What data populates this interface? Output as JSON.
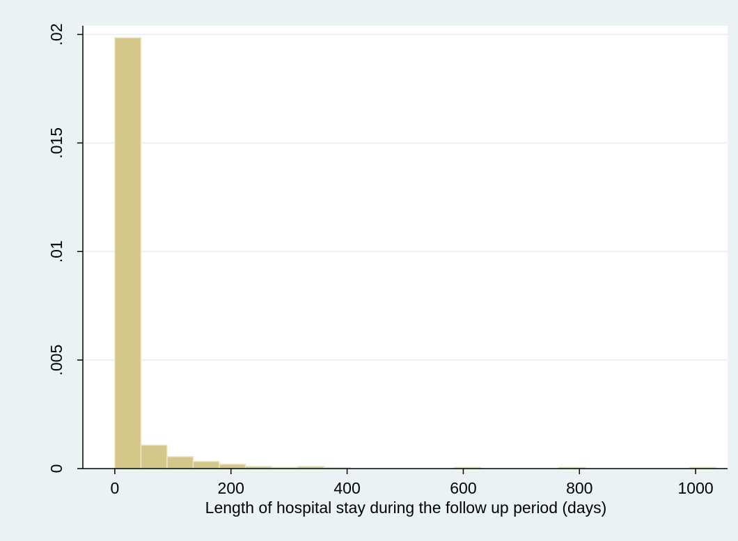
{
  "colors": {
    "background": "#eaf2f3",
    "plot_area": "#ffffff",
    "grid": "#eaf2f3",
    "bar_fill": "#d3c88a",
    "bar_stroke": "#ece6c4",
    "axis": "#000000"
  },
  "chart_data": {
    "type": "bar",
    "title": "",
    "xlabel": "Length of hospital stay during the follow up period (days)",
    "ylabel": "",
    "xlim": [
      -55,
      1055
    ],
    "ylim": [
      0,
      0.0204
    ],
    "grid": true,
    "x_ticks": [
      0,
      200,
      400,
      600,
      800,
      1000
    ],
    "x_tick_labels": [
      "0",
      "200",
      "400",
      "600",
      "800",
      "1000"
    ],
    "y_ticks": [
      0,
      0.005,
      0.01,
      0.015,
      0.02
    ],
    "y_tick_labels": [
      "0",
      ".005",
      ".01",
      ".015",
      ".02"
    ],
    "bin_width": 45,
    "bins": [
      {
        "start": 0,
        "end": 45,
        "density": 0.01985
      },
      {
        "start": 45,
        "end": 90,
        "density": 0.00108
      },
      {
        "start": 90,
        "end": 135,
        "density": 0.00055
      },
      {
        "start": 135,
        "end": 180,
        "density": 0.00033
      },
      {
        "start": 180,
        "end": 225,
        "density": 0.0002
      },
      {
        "start": 225,
        "end": 270,
        "density": 0.0001
      },
      {
        "start": 270,
        "end": 315,
        "density": 6e-05
      },
      {
        "start": 315,
        "end": 360,
        "density": 0.0001
      },
      {
        "start": 360,
        "end": 405,
        "density": 5e-05
      },
      {
        "start": 585,
        "end": 630,
        "density": 6e-05
      },
      {
        "start": 765,
        "end": 810,
        "density": 6e-05
      },
      {
        "start": 990,
        "end": 1035,
        "density": 6e-05
      }
    ]
  }
}
